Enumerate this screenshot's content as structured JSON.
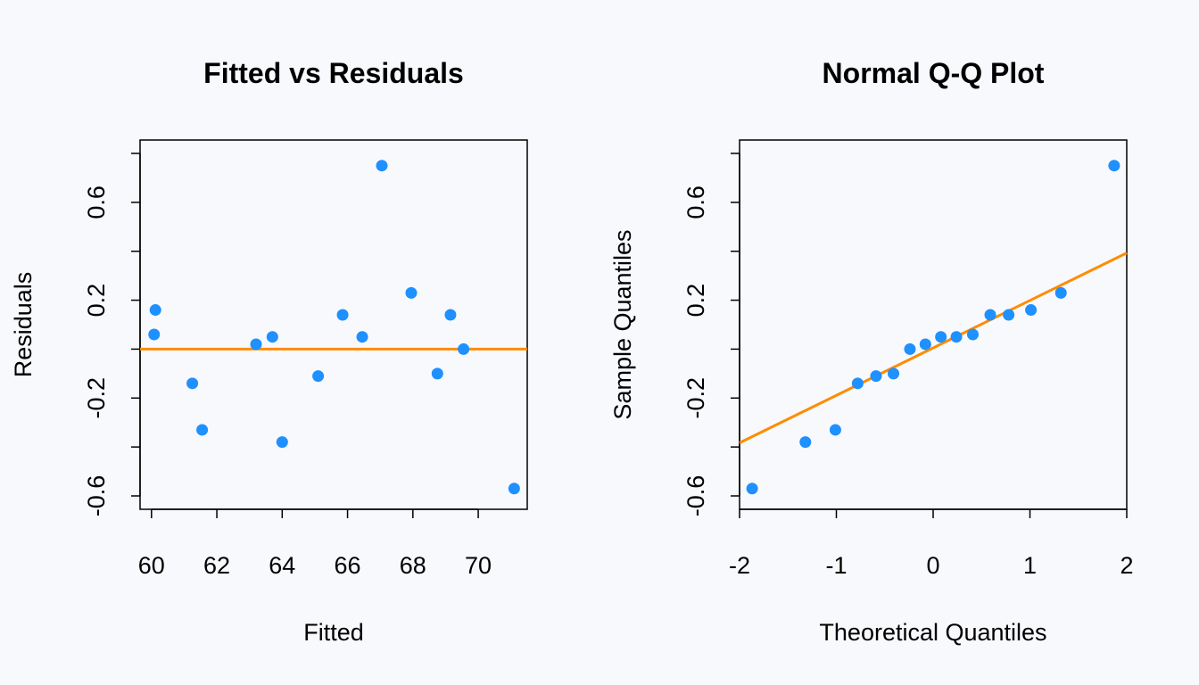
{
  "colors": {
    "background": "#f8f9fd",
    "points": "#1e90ff",
    "reference_line": "#ff8c00",
    "axes": "#000000"
  },
  "chart_data": [
    {
      "type": "scatter",
      "title": "Fitted vs Residuals",
      "xlabel": "Fitted",
      "ylabel": "Residuals",
      "xlim": [
        59.65,
        71.5
      ],
      "ylim": [
        -0.6,
        0.8
      ],
      "xticks": [
        60,
        62,
        64,
        66,
        68,
        70
      ],
      "yticks": [
        -0.6,
        -0.2,
        0.2,
        0.6
      ],
      "xtick_labels": [
        "60",
        "62",
        "64",
        "66",
        "68",
        "70"
      ],
      "ytick_labels": [
        "-0.6",
        "-0.2",
        "0.2",
        "0.6"
      ],
      "grid": false,
      "reference_line": {
        "type": "horizontal",
        "y": 0
      },
      "points": [
        {
          "x": 60.08,
          "y": 0.06
        },
        {
          "x": 60.12,
          "y": 0.16
        },
        {
          "x": 61.25,
          "y": -0.14
        },
        {
          "x": 61.55,
          "y": -0.33
        },
        {
          "x": 63.2,
          "y": 0.02
        },
        {
          "x": 63.7,
          "y": 0.05
        },
        {
          "x": 64.0,
          "y": -0.38
        },
        {
          "x": 65.1,
          "y": -0.11
        },
        {
          "x": 65.85,
          "y": 0.14
        },
        {
          "x": 66.45,
          "y": 0.05
        },
        {
          "x": 67.05,
          "y": 0.75
        },
        {
          "x": 67.95,
          "y": 0.23
        },
        {
          "x": 68.75,
          "y": -0.1
        },
        {
          "x": 69.15,
          "y": 0.14
        },
        {
          "x": 69.55,
          "y": 0.0
        },
        {
          "x": 71.1,
          "y": -0.57
        }
      ]
    },
    {
      "type": "scatter",
      "title": "Normal Q-Q Plot",
      "xlabel": "Theoretical Quantiles",
      "ylabel": "Sample Quantiles",
      "xlim": [
        -2,
        2
      ],
      "ylim": [
        -0.6,
        0.8
      ],
      "xticks": [
        -2,
        -1,
        0,
        1,
        2
      ],
      "yticks": [
        -0.6,
        -0.2,
        0.2,
        0.6
      ],
      "xtick_labels": [
        "-2",
        "-1",
        "0",
        "1",
        "2"
      ],
      "ytick_labels": [
        "-0.6",
        "-0.2",
        "0.2",
        "0.6"
      ],
      "grid": false,
      "reference_line": {
        "type": "qqline",
        "intercept": 0.005,
        "slope": 0.194
      },
      "points": [
        {
          "x": -1.87,
          "y": -0.57
        },
        {
          "x": -1.32,
          "y": -0.38
        },
        {
          "x": -1.01,
          "y": -0.33
        },
        {
          "x": -0.78,
          "y": -0.14
        },
        {
          "x": -0.59,
          "y": -0.11
        },
        {
          "x": -0.41,
          "y": -0.1
        },
        {
          "x": -0.24,
          "y": 0.0
        },
        {
          "x": -0.08,
          "y": 0.02
        },
        {
          "x": 0.08,
          "y": 0.05
        },
        {
          "x": 0.24,
          "y": 0.05
        },
        {
          "x": 0.41,
          "y": 0.06
        },
        {
          "x": 0.59,
          "y": 0.14
        },
        {
          "x": 0.78,
          "y": 0.14
        },
        {
          "x": 1.01,
          "y": 0.16
        },
        {
          "x": 1.32,
          "y": 0.23
        },
        {
          "x": 1.87,
          "y": 0.75
        }
      ]
    }
  ]
}
